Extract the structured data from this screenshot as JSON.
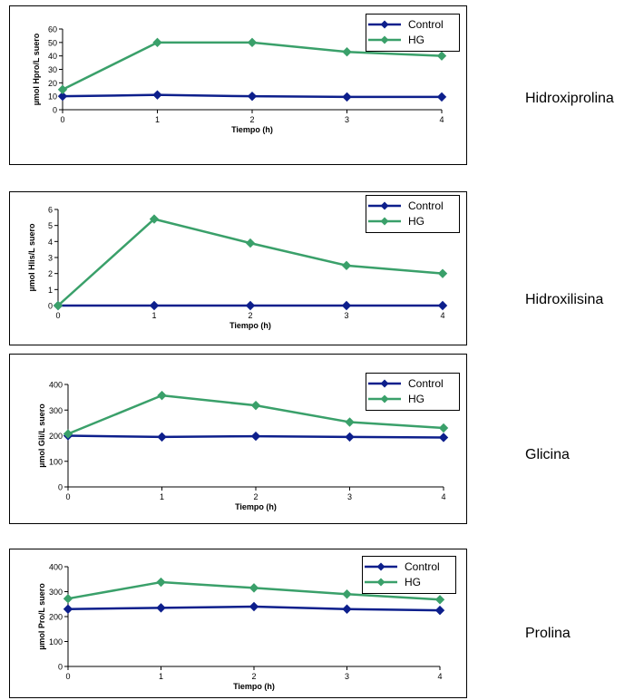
{
  "chart_data": [
    {
      "type": "line",
      "title": "",
      "side_label": "Hidroxiprolina",
      "xlabel": "Tiempo (h)",
      "ylabel": "µmol Hpro/L suero",
      "x": [
        0,
        1,
        2,
        3,
        4
      ],
      "xlim": [
        0,
        4
      ],
      "ylim": [
        0,
        60
      ],
      "yticks": [
        0,
        10,
        20,
        30,
        40,
        50,
        60
      ],
      "series": [
        {
          "name": "Control",
          "color": "#0d1f8c",
          "values": [
            10,
            11,
            10,
            9.5,
            9.5
          ]
        },
        {
          "name": "HG",
          "color": "#3aa06a",
          "values": [
            15,
            50,
            50,
            43,
            40
          ]
        }
      ],
      "legend": "top-right"
    },
    {
      "type": "line",
      "title": "",
      "side_label": "Hidroxilisina",
      "xlabel": "Tiempo (h)",
      "ylabel": "µmol Hlis/L suero",
      "x": [
        0,
        1,
        2,
        3,
        4
      ],
      "xlim": [
        0,
        4
      ],
      "ylim": [
        0,
        6
      ],
      "yticks": [
        0,
        1,
        2,
        3,
        4,
        5,
        6
      ],
      "series": [
        {
          "name": "Control",
          "color": "#0d1f8c",
          "values": [
            0,
            0,
            0,
            0,
            0
          ]
        },
        {
          "name": "HG",
          "color": "#3aa06a",
          "values": [
            0,
            5.4,
            3.9,
            2.5,
            2.0
          ]
        }
      ],
      "legend": "top-right"
    },
    {
      "type": "line",
      "title": "",
      "side_label": "Glicina",
      "xlabel": "Tiempo (h)",
      "ylabel": "µmol Gli/L suero",
      "x": [
        0,
        1,
        2,
        3,
        4
      ],
      "xlim": [
        0,
        4
      ],
      "ylim": [
        0,
        400
      ],
      "yticks": [
        0,
        100,
        200,
        300,
        400
      ],
      "series": [
        {
          "name": "Control",
          "color": "#0d1f8c",
          "values": [
            200,
            195,
            198,
            195,
            193
          ]
        },
        {
          "name": "HG",
          "color": "#3aa06a",
          "values": [
            207,
            357,
            318,
            253,
            230
          ]
        }
      ],
      "legend": "top-right"
    },
    {
      "type": "line",
      "title": "",
      "side_label": "Prolina",
      "xlabel": "Tiempo (h)",
      "ylabel": "µmol Pro/L suero",
      "x": [
        0,
        1,
        2,
        3,
        4
      ],
      "xlim": [
        0,
        4
      ],
      "ylim": [
        0,
        400
      ],
      "yticks": [
        0,
        100,
        200,
        300,
        400
      ],
      "series": [
        {
          "name": "Control",
          "color": "#0d1f8c",
          "values": [
            230,
            235,
            240,
            230,
            225
          ]
        },
        {
          "name": "HG",
          "color": "#3aa06a",
          "values": [
            272,
            338,
            315,
            290,
            268
          ]
        }
      ],
      "legend": "top-right"
    }
  ]
}
